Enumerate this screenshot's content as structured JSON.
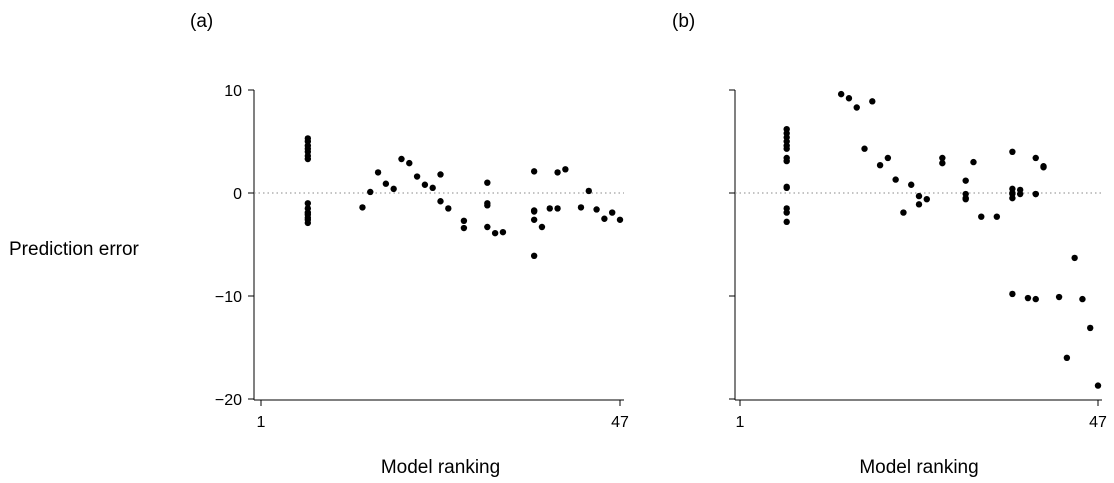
{
  "figure": {
    "ylabel": "Prediction error"
  },
  "chart_data": [
    {
      "type": "scatter",
      "panel_label": "(a)",
      "xlabel": "Model ranking",
      "ylabel": "Prediction error",
      "xlim": [
        1,
        47
      ],
      "ylim": [
        -20,
        10
      ],
      "x_ticks": [
        1,
        47
      ],
      "y_ticks": [
        10,
        0,
        -10,
        -20
      ],
      "y_tick_labels": [
        "10",
        "0",
        "−10",
        "−20"
      ],
      "reference_line": {
        "y": 0,
        "style": "dotted"
      },
      "grid": false,
      "series": [
        {
          "x": [
            7,
            7,
            7,
            7,
            7,
            7,
            7,
            7,
            7,
            7,
            7,
            7,
            7,
            7,
            14,
            15,
            16,
            17,
            18,
            19,
            20,
            21,
            22,
            23,
            24,
            24,
            25,
            27,
            27,
            30,
            30,
            30,
            30,
            31,
            32,
            36,
            36,
            36,
            36,
            36,
            37,
            38,
            39,
            39,
            40,
            42,
            43,
            44,
            45,
            46,
            47
          ],
          "y": [
            5.3,
            5.0,
            4.6,
            4.3,
            4.0,
            3.6,
            3.3,
            -1.0,
            -1.5,
            -1.9,
            -2.1,
            -2.4,
            -2.6,
            -2.9,
            -1.4,
            0.1,
            2.0,
            0.9,
            0.4,
            3.3,
            2.9,
            1.6,
            0.8,
            0.5,
            -0.8,
            1.8,
            -1.5,
            -2.7,
            -3.4,
            1.0,
            -1.0,
            -3.3,
            -1.2,
            -3.9,
            -3.8,
            2.1,
            -1.7,
            -2.6,
            -6.1,
            -1.8,
            -3.3,
            -1.5,
            2.0,
            -1.5,
            2.3,
            -1.4,
            0.2,
            -1.6,
            -2.5,
            -1.9,
            -2.6
          ]
        }
      ]
    },
    {
      "type": "scatter",
      "panel_label": "(b)",
      "xlabel": "Model ranking",
      "ylabel": "",
      "xlim": [
        1,
        47
      ],
      "ylim": [
        -20,
        10
      ],
      "x_ticks": [
        1,
        47
      ],
      "y_ticks": [
        10,
        0,
        -10,
        -20
      ],
      "y_tick_labels": [
        "",
        "",
        "",
        ""
      ],
      "reference_line": {
        "y": 0,
        "style": "dotted"
      },
      "grid": false,
      "series": [
        {
          "x": [
            7,
            7,
            7,
            7,
            7,
            7,
            7,
            7,
            7,
            7,
            7,
            7,
            7,
            14,
            15,
            16,
            17,
            18,
            19,
            20,
            21,
            22,
            23,
            24,
            24,
            25,
            27,
            27,
            30,
            30,
            30,
            30,
            31,
            32,
            34,
            36,
            37,
            39,
            39,
            40,
            36,
            36,
            36,
            36,
            36,
            37,
            38,
            39,
            39,
            40,
            42,
            43,
            44,
            45,
            46,
            47
          ],
          "y": [
            6.2,
            5.8,
            5.4,
            5.0,
            4.6,
            4.3,
            3.4,
            3.1,
            0.6,
            0.5,
            -1.5,
            -1.9,
            -2.8,
            9.6,
            9.2,
            8.3,
            4.3,
            8.9,
            2.7,
            3.4,
            1.3,
            -1.9,
            0.8,
            -1.1,
            -0.3,
            -0.6,
            3.4,
            2.9,
            1.2,
            -0.1,
            -0.5,
            -0.6,
            3.0,
            -2.3,
            -2.3,
            4.0,
            0.3,
            3.4,
            -0.1,
            2.6,
            0.4,
            -0.5,
            0.0,
            -0.1,
            -9.8,
            -0.1,
            -10.2,
            -0.1,
            -10.3,
            2.5,
            -10.1,
            -16.0,
            -6.3,
            -10.3,
            -13.1,
            -18.7
          ]
        }
      ]
    }
  ]
}
